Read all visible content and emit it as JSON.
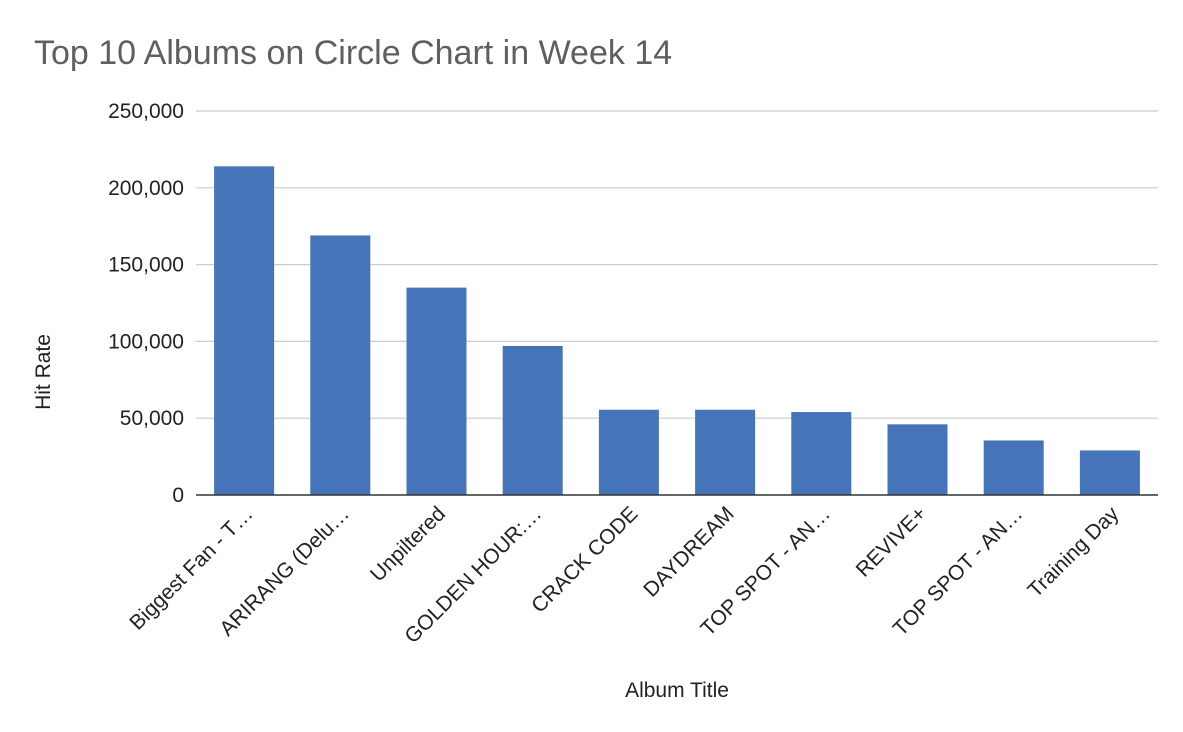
{
  "chart_data": {
    "type": "bar",
    "title": "Top 10 Albums on Circle Chart in Week 14",
    "xlabel": "Album Title",
    "ylabel": "Hit Rate",
    "ylim": [
      0,
      250000
    ],
    "yticks": [
      0,
      50000,
      100000,
      150000,
      200000,
      250000
    ],
    "ytick_labels": [
      "0",
      "50,000",
      "100,000",
      "150,000",
      "200,000",
      "250,000"
    ],
    "categories": [
      "Biggest Fan - T…",
      "ARIRANG (Delu…",
      "Unpiltered",
      "GOLDEN HOUR:…",
      "CRACK CODE",
      "DAYDREAM",
      "TOP SPOT - AN…",
      "REVIVE+",
      "TOP SPOT - AN…",
      "Training Day"
    ],
    "values": [
      214000,
      169000,
      135000,
      97000,
      55500,
      55500,
      54000,
      46000,
      35500,
      29000
    ],
    "grid": true,
    "legend": "none",
    "colors": {
      "bar": "#4674b8"
    }
  }
}
